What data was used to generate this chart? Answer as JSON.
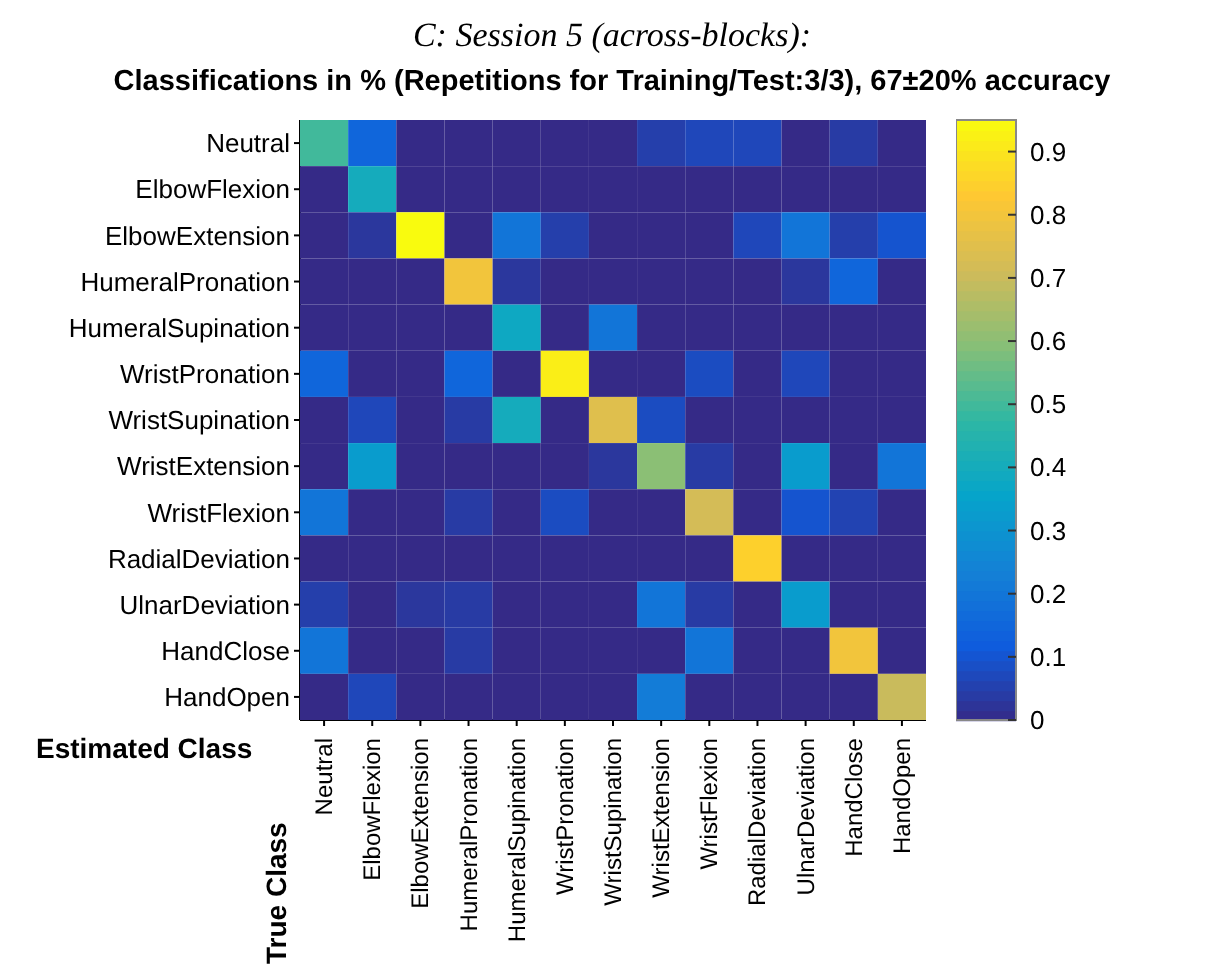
{
  "chart_data": {
    "type": "heatmap",
    "subtitle": "C: Session 5 (across-blocks):",
    "title": "Classifications in % (Repetitions for Training/Test:3/3), 67±20% accuracy",
    "xlabel": "Estimated Class",
    "ylabel": "True Class",
    "categories": [
      "Neutral",
      "ElbowFlexion",
      "ElbowExtension",
      "HumeralPronation",
      "HumeralSupination",
      "WristPronation",
      "WristSupination",
      "WristExtension",
      "WristFlexion",
      "RadialDeviation",
      "UlnarDeviation",
      "HandClose",
      "HandOpen"
    ],
    "y_categories": [
      "Neutral",
      "ElbowFlexion",
      "ElbowExtension",
      "HumeralPronation",
      "HumeralSupination",
      "WristPronation",
      "WristSupination",
      "WristExtension",
      "WristFlexion",
      "RadialDeviation",
      "UlnarDeviation",
      "HandClose",
      "HandOpen"
    ],
    "cells": [
      [
        0.5,
        0.15,
        0,
        0,
        0,
        0,
        0,
        0.05,
        0.07,
        0.07,
        0,
        0.04,
        0
      ],
      [
        0,
        0.4,
        0,
        0,
        0,
        0,
        0,
        0,
        0,
        0,
        0,
        0,
        0
      ],
      [
        0,
        0.03,
        0.95,
        0,
        0.2,
        0.05,
        0,
        0,
        0,
        0.07,
        0.2,
        0.05,
        0.1
      ],
      [
        0,
        0,
        0,
        0.8,
        0.03,
        0,
        0,
        0,
        0,
        0,
        0.03,
        0.15,
        0
      ],
      [
        0,
        0,
        0,
        0,
        0.38,
        0,
        0.2,
        0,
        0,
        0,
        0,
        0,
        0
      ],
      [
        0.15,
        0,
        0,
        0.15,
        0,
        0.92,
        0,
        0,
        0.08,
        0,
        0.07,
        0,
        0
      ],
      [
        0,
        0.07,
        0,
        0.04,
        0.4,
        0,
        0.75,
        0.08,
        0,
        0,
        0,
        0,
        0
      ],
      [
        0,
        0.33,
        0,
        0,
        0,
        0,
        0.03,
        0.6,
        0.04,
        0,
        0.33,
        0,
        0.2
      ],
      [
        0.2,
        0,
        0,
        0.04,
        0,
        0.08,
        0,
        0,
        0.72,
        0,
        0.1,
        0.06,
        0
      ],
      [
        0,
        0,
        0,
        0,
        0,
        0,
        0,
        0,
        0,
        0.85,
        0,
        0,
        0
      ],
      [
        0.05,
        0,
        0.03,
        0.04,
        0,
        0,
        0,
        0.2,
        0.04,
        0,
        0.33,
        0,
        0
      ],
      [
        0.2,
        0,
        0,
        0.04,
        0,
        0,
        0,
        0,
        0.2,
        0,
        0,
        0.8,
        0
      ],
      [
        0,
        0.07,
        0,
        0,
        0,
        0,
        0,
        0.22,
        0,
        0,
        0,
        0,
        0.7
      ]
    ],
    "clim": [
      0,
      0.95
    ],
    "cticks": [
      0,
      0.1,
      0.2,
      0.3,
      0.4,
      0.5,
      0.6,
      0.7,
      0.8,
      0.9
    ]
  }
}
